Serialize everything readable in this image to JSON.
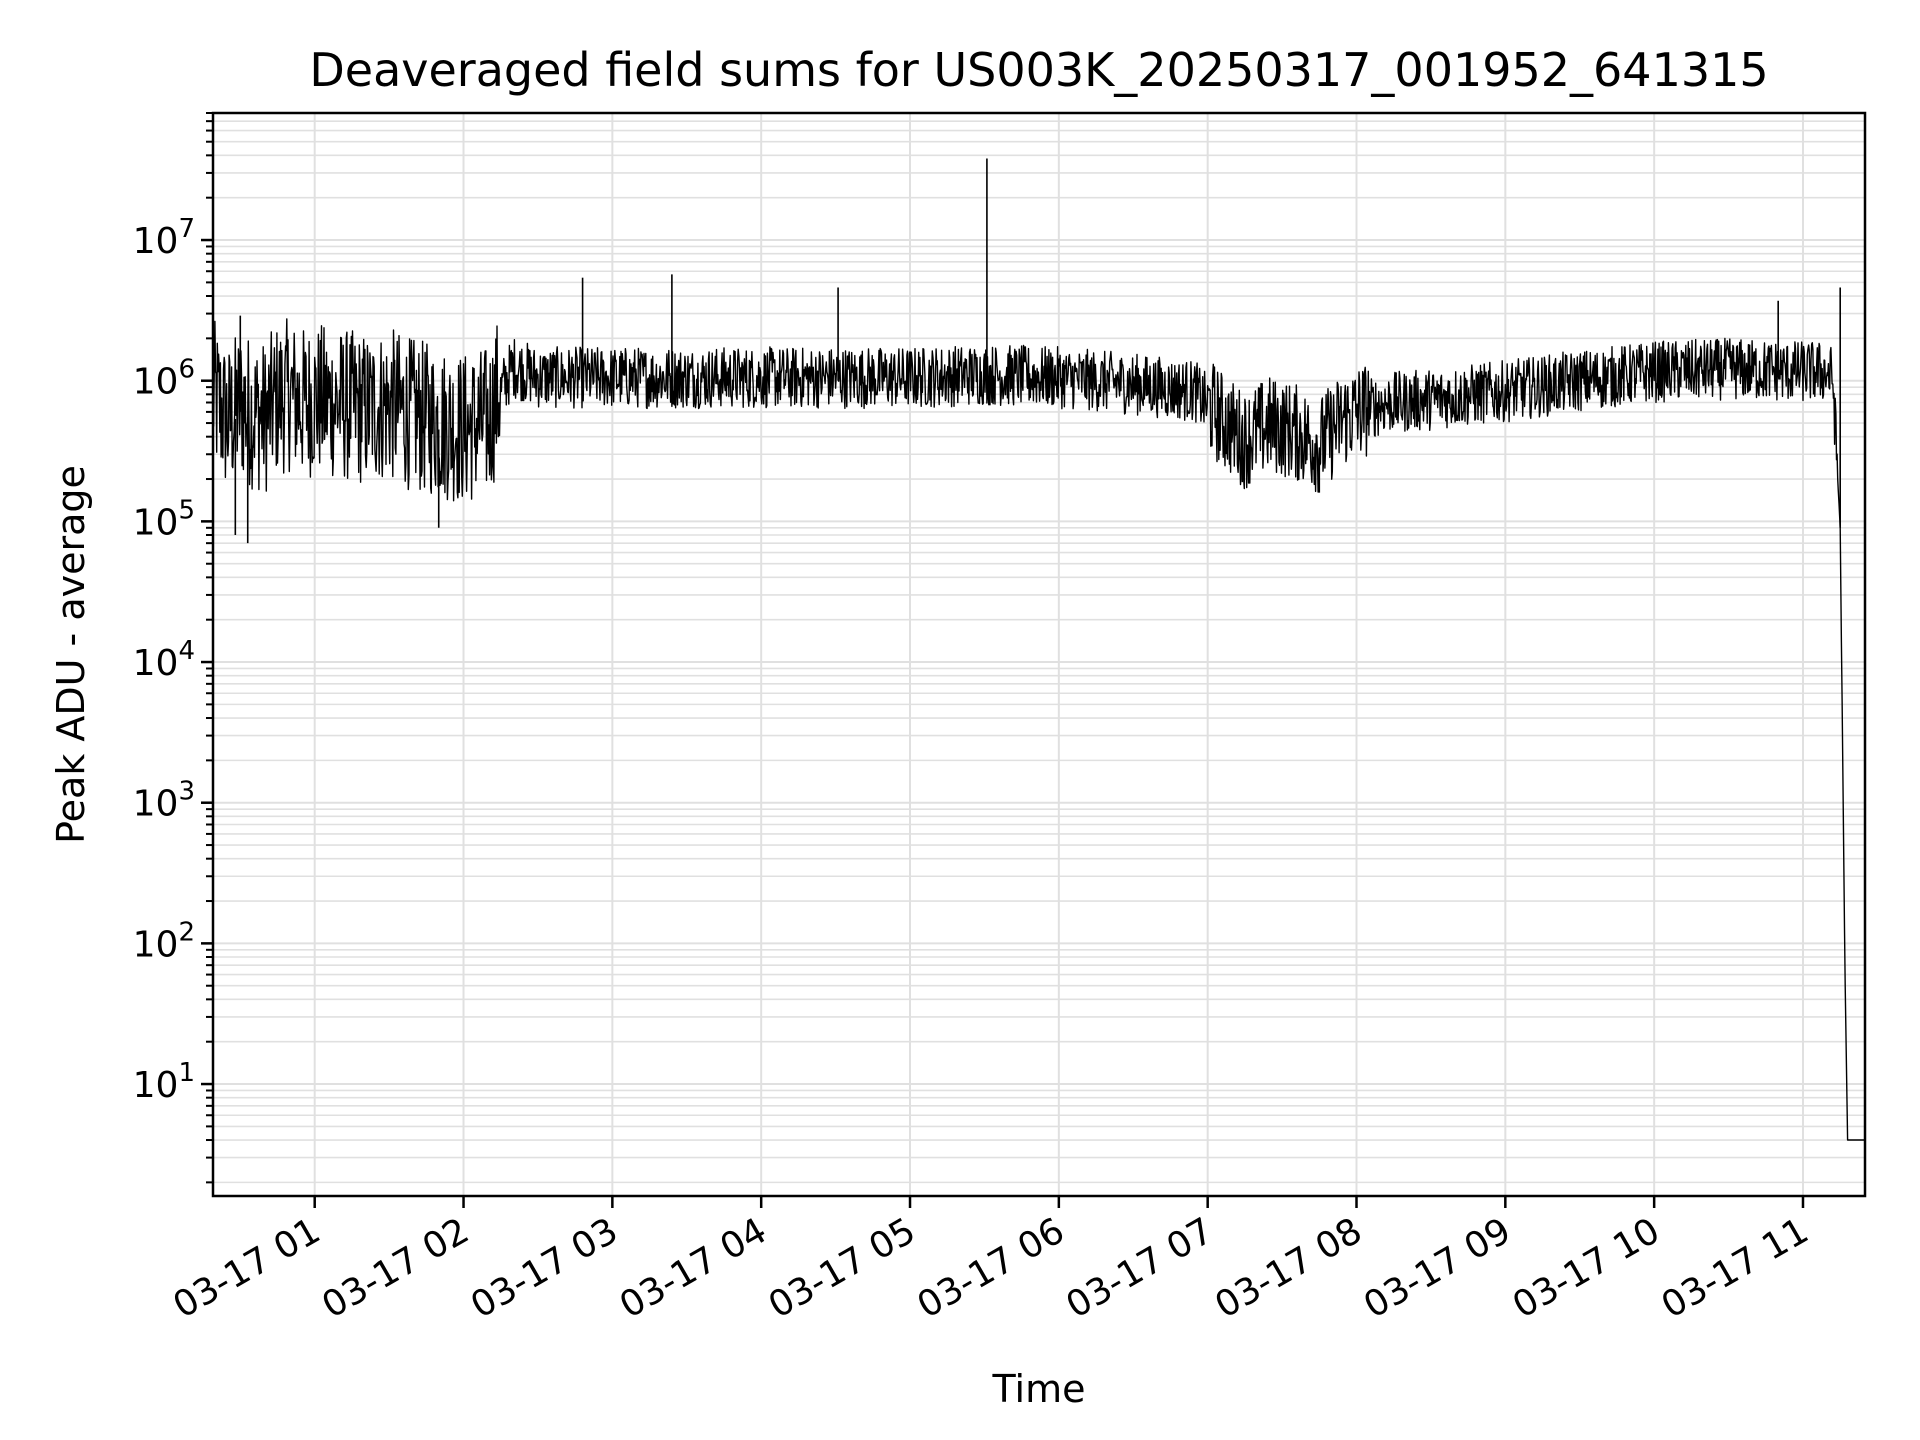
{
  "chart_data": {
    "type": "line",
    "title": "Deaveraged field sums for US003K_20250317_001952_641315",
    "xlabel": "Time",
    "ylabel": "Peak ADU - average",
    "yscale": "log",
    "ylim": [
      1.6,
      80000000
    ],
    "xlim": [
      "03-17 00:19",
      "03-17 11:25"
    ],
    "grid": true,
    "line_color": "#000000",
    "grid_color": "#e0e0e0",
    "x_ticks": [
      "03-17 01",
      "03-17 02",
      "03-17 03",
      "03-17 04",
      "03-17 05",
      "03-17 06",
      "03-17 07",
      "03-17 08",
      "03-17 09",
      "03-17 10",
      "03-17 11"
    ],
    "y_ticks": [
      {
        "value": 10,
        "base": "10",
        "exp": "1"
      },
      {
        "value": 100,
        "base": "10",
        "exp": "2"
      },
      {
        "value": 1000,
        "base": "10",
        "exp": "3"
      },
      {
        "value": 10000,
        "base": "10",
        "exp": "4"
      },
      {
        "value": 100000,
        "base": "10",
        "exp": "5"
      },
      {
        "value": 1000000,
        "base": "10",
        "exp": "6"
      },
      {
        "value": 10000000,
        "base": "10",
        "exp": "7"
      }
    ],
    "series": [
      {
        "points": [
          [
            "03-17 00:19",
            700000
          ],
          [
            "03-17 00:25",
            450000
          ],
          [
            "03-17 00:30",
            600000
          ],
          [
            "03-17 00:35",
            520000
          ],
          [
            "03-17 00:40",
            480000
          ],
          [
            "03-17 00:45",
            650000
          ],
          [
            "03-17 00:50",
            700000
          ],
          [
            "03-17 00:55",
            600000
          ],
          [
            "03-17 01:00",
            650000
          ],
          [
            "03-17 01:10",
            600000
          ],
          [
            "03-17 01:20",
            550000
          ],
          [
            "03-17 01:30",
            600000
          ],
          [
            "03-17 01:40",
            500000
          ],
          [
            "03-17 01:50",
            450000
          ],
          [
            "03-17 02:00",
            400000
          ],
          [
            "03-17 02:10",
            450000
          ],
          [
            "03-17 02:15",
            800000
          ],
          [
            "03-17 02:20",
            1200000
          ],
          [
            "03-17 02:30",
            1000000
          ],
          [
            "03-17 02:45",
            1000000
          ],
          [
            "03-17 03:00",
            1000000
          ],
          [
            "03-17 03:30",
            1000000
          ],
          [
            "03-17 04:00",
            1000000
          ],
          [
            "03-17 04:30",
            1000000
          ],
          [
            "03-17 05:00",
            1000000
          ],
          [
            "03-17 05:30",
            1050000
          ],
          [
            "03-17 06:00",
            1000000
          ],
          [
            "03-17 06:30",
            900000
          ],
          [
            "03-17 06:55",
            800000
          ],
          [
            "03-17 07:05",
            500000
          ],
          [
            "03-17 07:15",
            350000
          ],
          [
            "03-17 07:25",
            450000
          ],
          [
            "03-17 07:35",
            400000
          ],
          [
            "03-17 07:45",
            320000
          ],
          [
            "03-17 07:55",
            500000
          ],
          [
            "03-17 08:10",
            650000
          ],
          [
            "03-17 08:30",
            700000
          ],
          [
            "03-17 09:00",
            800000
          ],
          [
            "03-17 09:30",
            950000
          ],
          [
            "03-17 10:00",
            1100000
          ],
          [
            "03-17 10:30",
            1150000
          ],
          [
            "03-17 11:00",
            1100000
          ],
          [
            "03-17 11:09",
            1100000
          ],
          [
            "03-17 11:12",
            1000000
          ],
          [
            "03-17 11:15",
            90000
          ],
          [
            "03-17 11:17",
            50
          ],
          [
            "03-17 11:18",
            4
          ],
          [
            "03-17 11:25",
            4
          ]
        ]
      }
    ],
    "spikes": [
      [
        "03-17 00:30",
        2900000
      ],
      [
        "03-17 00:33",
        70000
      ],
      [
        "03-17 00:28",
        80000
      ],
      [
        "03-17 01:50",
        90000
      ],
      [
        "03-17 02:48",
        5400000
      ],
      [
        "03-17 03:24",
        5700000
      ],
      [
        "03-17 04:31",
        4600000
      ],
      [
        "03-17 05:31",
        38000000
      ],
      [
        "03-17 10:50",
        3700000
      ],
      [
        "03-17 11:15",
        4600000
      ],
      [
        "03-17 07:45",
        160000
      ],
      [
        "03-17 07:14",
        190000
      ]
    ]
  }
}
